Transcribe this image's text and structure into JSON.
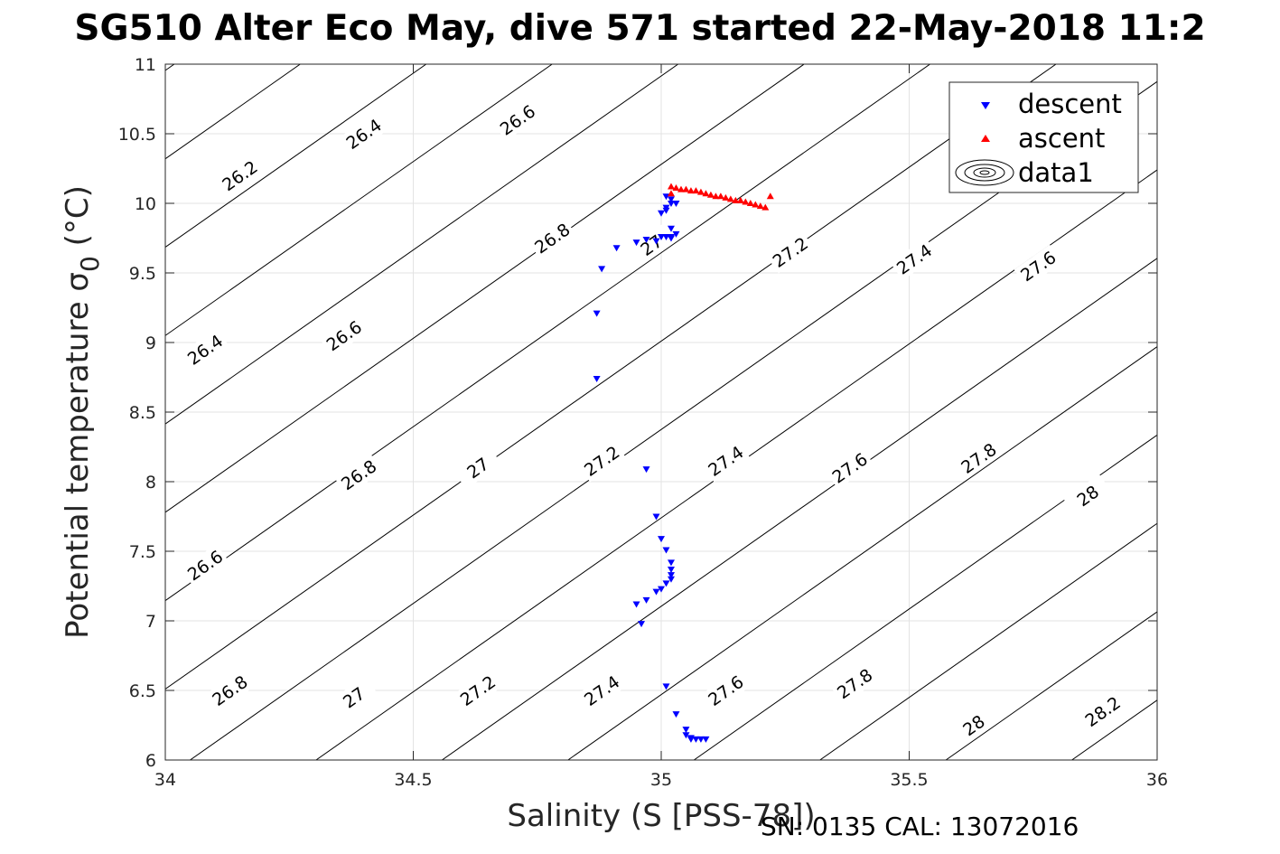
{
  "chart_data": {
    "type": "scatter",
    "title": "SG510 Alter Eco May, dive 571 started 22-May-2018 11:2",
    "xlabel": "Salinity (S [PSS-78])",
    "ylabel": "Potential temperature σ0 (°C)",
    "xlim": [
      34,
      36
    ],
    "ylim": [
      6,
      11
    ],
    "xticks": [
      "34",
      "34.5",
      "35",
      "35.5",
      "36"
    ],
    "yticks": [
      "6",
      "6.5",
      "7",
      "7.5",
      "8",
      "8.5",
      "9",
      "9.5",
      "10",
      "10.5",
      "11"
    ],
    "grid": true,
    "legend": {
      "position": "top-right",
      "entries": [
        "descent",
        "ascent",
        "data1"
      ]
    },
    "series": [
      {
        "name": "descent",
        "color": "#0000ff",
        "marker": "down-triangle",
        "x": [
          35.01,
          35.01,
          35.02,
          35.02,
          35.03,
          35.0,
          35.01,
          35.02,
          35.01,
          35.02,
          35.02,
          35.03,
          35.0,
          34.99,
          34.97,
          34.95,
          34.91,
          34.88,
          34.87,
          34.87,
          34.97,
          34.99,
          35.0,
          35.01,
          35.02,
          35.02,
          35.02,
          35.02,
          35.01,
          35.0,
          34.99,
          34.97,
          34.96,
          34.95,
          35.01,
          35.03,
          35.05,
          35.05,
          35.06,
          35.06,
          35.07,
          35.08,
          35.09
        ],
        "y": [
          10.05,
          9.97,
          10.0,
          10.03,
          10.0,
          9.93,
          9.95,
          9.82,
          9.76,
          9.75,
          9.76,
          9.78,
          9.76,
          9.73,
          9.74,
          9.72,
          9.68,
          9.53,
          9.21,
          8.74,
          8.09,
          7.75,
          7.59,
          7.51,
          7.42,
          7.37,
          7.33,
          7.3,
          7.27,
          7.23,
          7.21,
          7.15,
          6.98,
          7.12,
          6.53,
          6.33,
          6.22,
          6.18,
          6.16,
          6.15,
          6.15,
          6.15,
          6.15
        ]
      },
      {
        "name": "ascent",
        "color": "#ff0000",
        "marker": "up-triangle",
        "x": [
          35.02,
          35.03,
          35.04,
          35.05,
          35.06,
          35.07,
          35.08,
          35.09,
          35.1,
          35.11,
          35.12,
          35.13,
          35.14,
          35.15,
          35.16,
          35.17,
          35.18,
          35.19,
          35.2,
          35.21,
          35.02,
          35.22
        ],
        "y": [
          10.12,
          10.11,
          10.1,
          10.1,
          10.09,
          10.09,
          10.08,
          10.07,
          10.06,
          10.05,
          10.05,
          10.04,
          10.03,
          10.02,
          10.02,
          10.01,
          10.0,
          9.99,
          9.98,
          9.97,
          10.07,
          10.05
        ]
      }
    ],
    "contours": {
      "name": "data1",
      "color": "#000000",
      "levels": [
        "26.2",
        "26.4",
        "26.6",
        "26.8",
        "27",
        "27.2",
        "27.4",
        "27.6",
        "27.8",
        "28",
        "28.2"
      ]
    },
    "annotation": "SN: 0135  CAL: 13072016"
  }
}
